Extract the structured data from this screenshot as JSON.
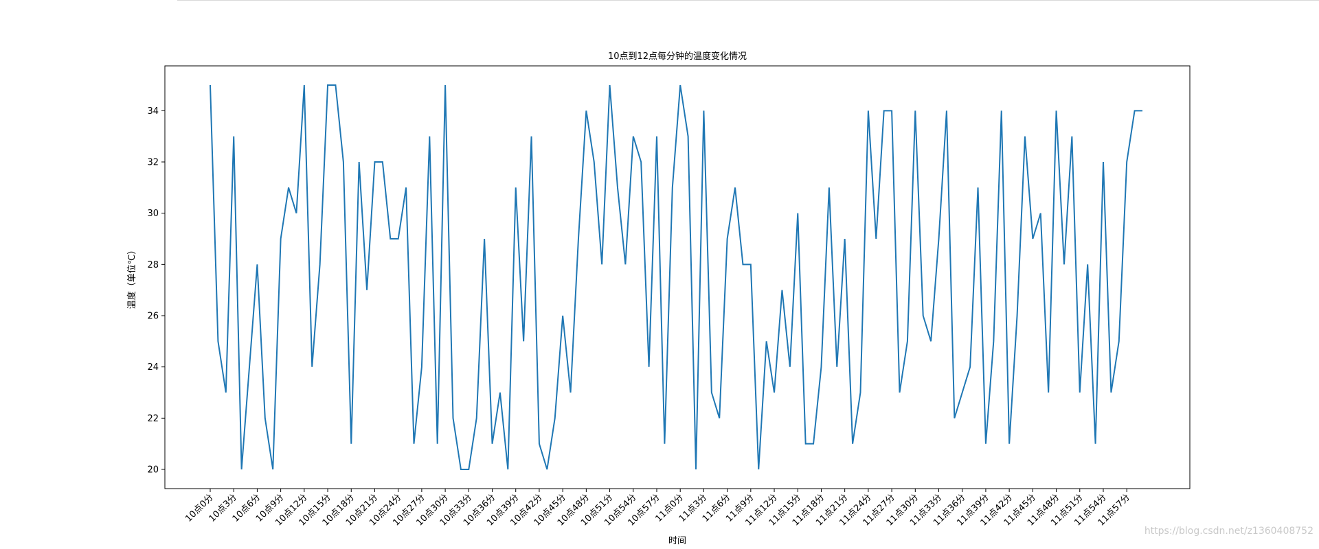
{
  "chart_data": {
    "type": "line",
    "title": "10点到12点每分钟的温度变化情况",
    "xlabel": "时间",
    "ylabel": "温度（单位℃）",
    "ylim": [
      19.25,
      35.75
    ],
    "yticks": [
      20,
      22,
      24,
      26,
      28,
      30,
      32,
      34
    ],
    "xticks": [
      0,
      3,
      6,
      9,
      12,
      15,
      18,
      21,
      24,
      27,
      30,
      33,
      36,
      39,
      42,
      45,
      48,
      51,
      54,
      57,
      60,
      63,
      66,
      69,
      72,
      75,
      78,
      81,
      84,
      87,
      90,
      93,
      96,
      99,
      102,
      105,
      108,
      111,
      114,
      117
    ],
    "xtick_labels": [
      "10点0分",
      "10点3分",
      "10点6分",
      "10点9分",
      "10点12分",
      "10点15分",
      "10点18分",
      "10点21分",
      "10点24分",
      "10点27分",
      "10点30分",
      "10点33分",
      "10点36分",
      "10点39分",
      "10点42分",
      "10点45分",
      "10点48分",
      "10点51分",
      "10点54分",
      "10点57分",
      "11点0分",
      "11点3分",
      "11点6分",
      "11点9分",
      "11点12分",
      "11点15分",
      "11点18分",
      "11点21分",
      "11点24分",
      "11点27分",
      "11点30分",
      "11点33分",
      "11点36分",
      "11点39分",
      "11点42分",
      "11点45分",
      "11点48分",
      "11点51分",
      "11点54分",
      "11点57分"
    ],
    "grid": false,
    "series": [
      {
        "color": "#1f77b4",
        "values": [
          35,
          25,
          23,
          33,
          20,
          24,
          28,
          22,
          20,
          29,
          31,
          30,
          35,
          24,
          28,
          35,
          35,
          32,
          21,
          32,
          27,
          32,
          32,
          29,
          29,
          31,
          21,
          24,
          33,
          21,
          35,
          22,
          20,
          20,
          22,
          29,
          21,
          23,
          20,
          31,
          25,
          33,
          21,
          20,
          22,
          26,
          23,
          29,
          34,
          32,
          28,
          35,
          31,
          28,
          33,
          32,
          24,
          33,
          21,
          31,
          35,
          33,
          20,
          34,
          23,
          22,
          29,
          31,
          28,
          28,
          20,
          25,
          23,
          27,
          24,
          30,
          21,
          21,
          24,
          31,
          24,
          29,
          21,
          23,
          34,
          29,
          34,
          34,
          23,
          25,
          34,
          26,
          25,
          29,
          34,
          22,
          23,
          24,
          31,
          21,
          25,
          34,
          21,
          26,
          33,
          29,
          30,
          23,
          34,
          28,
          33,
          23,
          28,
          21,
          32,
          23,
          25,
          32,
          34,
          34
        ]
      }
    ]
  },
  "watermark": "https://blog.csdn.net/z1360408752"
}
